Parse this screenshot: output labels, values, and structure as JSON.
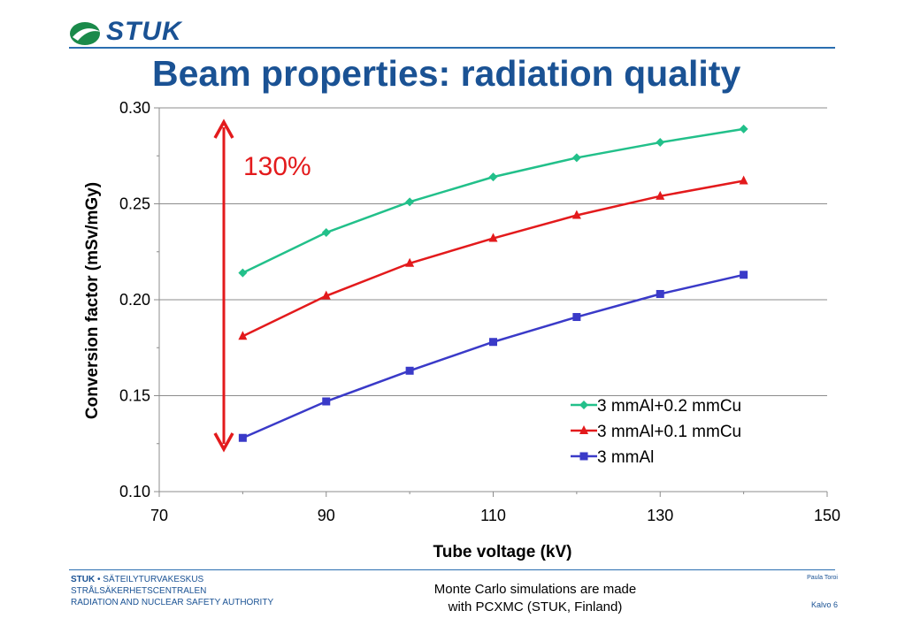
{
  "header": {
    "logo_text": "STUK",
    "title": "Beam properties: radiation quality"
  },
  "annotation": {
    "label": "130%",
    "color": "#e31a1c"
  },
  "chart_data": {
    "type": "line",
    "title": "",
    "xlabel": "Tube voltage (kV)",
    "ylabel": "Conversion factor (mSv/mGy)",
    "xlim": [
      70,
      150
    ],
    "ylim": [
      0.1,
      0.3
    ],
    "x_ticks": [
      70,
      90,
      110,
      130,
      150
    ],
    "x_tick_labels": [
      "70",
      "90",
      "110",
      "130",
      "150"
    ],
    "y_ticks": [
      0.1,
      0.15,
      0.2,
      0.25,
      0.3
    ],
    "y_tick_labels": [
      "0.10",
      "0.15",
      "0.20",
      "0.25",
      "0.30"
    ],
    "grid": "horizontal",
    "legend_position": "bottom-right",
    "x": [
      80,
      90,
      100,
      110,
      120,
      130,
      140
    ],
    "series": [
      {
        "name": "3 mmAl+0.2 mmCu",
        "color": "#22c08a",
        "marker": "diamond",
        "values": [
          0.214,
          0.235,
          0.251,
          0.264,
          0.274,
          0.282,
          0.289
        ]
      },
      {
        "name": "3 mmAl+0.1 mmCu",
        "color": "#e31a1c",
        "marker": "triangle",
        "values": [
          0.181,
          0.202,
          0.219,
          0.232,
          0.244,
          0.254,
          0.262
        ]
      },
      {
        "name": "3 mmAl",
        "color": "#3a3ac8",
        "marker": "square",
        "values": [
          0.128,
          0.147,
          0.163,
          0.178,
          0.191,
          0.203,
          0.213
        ]
      }
    ]
  },
  "footer": {
    "org_line1_bold": "STUK",
    "org_line1_rest": " • SÄTEILYTURVAKESKUS",
    "org_line2": "STRÅLSÄKERHETSCENTRALEN",
    "org_line3": "RADIATION AND NUCLEAR SAFETY AUTHORITY",
    "note_line1": "Monte Carlo simulations are made",
    "note_line2": "with PCXMC (STUK, Finland)",
    "author": "Paula Toroi",
    "page": "Kalvo 6"
  }
}
